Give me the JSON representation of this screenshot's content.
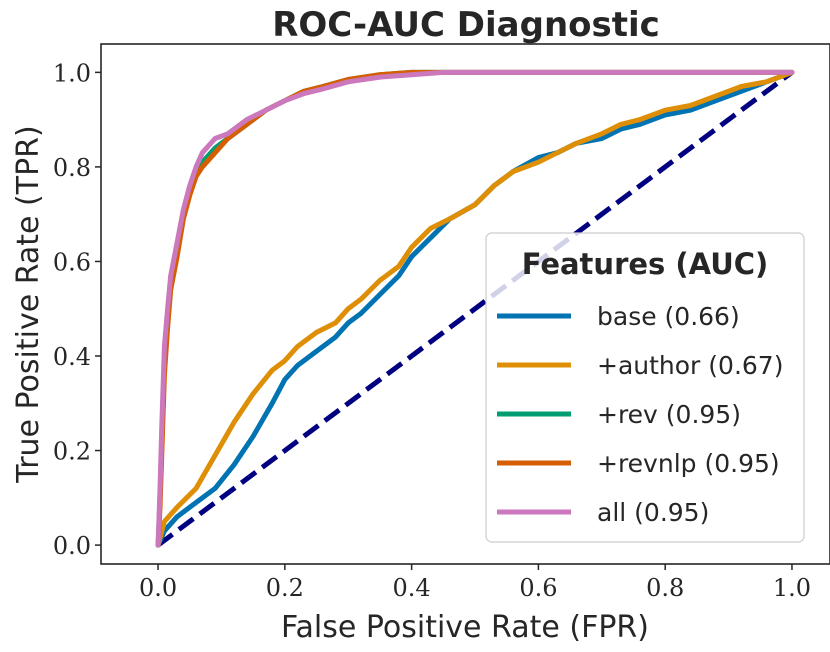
{
  "chart_data": {
    "type": "line",
    "title": "ROC-AUC Diagnostic",
    "xlabel": "False Positive Rate (FPR)",
    "ylabel": "True Positive Rate (TPR)",
    "xlim": [
      -0.09,
      1.06
    ],
    "ylim": [
      -0.04,
      1.06
    ],
    "xticks": [
      "0.0",
      "0.2",
      "0.4",
      "0.6",
      "0.8",
      "1.0"
    ],
    "yticks": [
      "0.0",
      "0.2",
      "0.4",
      "0.6",
      "0.8",
      "1.0"
    ],
    "xtick_values": [
      0,
      0.2,
      0.4,
      0.6,
      0.8,
      1.0
    ],
    "ytick_values": [
      0,
      0.2,
      0.4,
      0.6,
      0.8,
      1.0
    ],
    "grid": false,
    "legend": {
      "title": "Features (AUC)",
      "position": "lower-right"
    },
    "diagonal": {
      "x": [
        0,
        1
      ],
      "y": [
        0,
        1
      ],
      "color": "#000080",
      "style": "dashed"
    },
    "series": [
      {
        "name": "base (0.66)",
        "color": "#0173b2",
        "x": [
          0,
          0.01,
          0.03,
          0.06,
          0.09,
          0.12,
          0.15,
          0.18,
          0.2,
          0.22,
          0.25,
          0.28,
          0.3,
          0.32,
          0.35,
          0.38,
          0.4,
          0.43,
          0.46,
          0.5,
          0.53,
          0.56,
          0.6,
          0.63,
          0.66,
          0.7,
          0.73,
          0.76,
          0.8,
          0.84,
          0.88,
          0.92,
          0.96,
          1.0
        ],
        "y": [
          0,
          0.03,
          0.06,
          0.09,
          0.12,
          0.17,
          0.23,
          0.3,
          0.35,
          0.38,
          0.41,
          0.44,
          0.47,
          0.49,
          0.53,
          0.57,
          0.61,
          0.65,
          0.69,
          0.72,
          0.76,
          0.79,
          0.82,
          0.83,
          0.85,
          0.86,
          0.88,
          0.89,
          0.91,
          0.92,
          0.94,
          0.96,
          0.98,
          1.0
        ]
      },
      {
        "name": "+author (0.67)",
        "color": "#de8f05",
        "x": [
          0,
          0.01,
          0.03,
          0.06,
          0.09,
          0.12,
          0.15,
          0.18,
          0.2,
          0.22,
          0.25,
          0.28,
          0.3,
          0.32,
          0.35,
          0.38,
          0.4,
          0.43,
          0.46,
          0.5,
          0.53,
          0.56,
          0.6,
          0.63,
          0.66,
          0.7,
          0.73,
          0.76,
          0.8,
          0.84,
          0.88,
          0.92,
          0.96,
          1.0
        ],
        "y": [
          0,
          0.05,
          0.08,
          0.12,
          0.19,
          0.26,
          0.32,
          0.37,
          0.39,
          0.42,
          0.45,
          0.47,
          0.5,
          0.52,
          0.56,
          0.59,
          0.63,
          0.67,
          0.69,
          0.72,
          0.76,
          0.79,
          0.81,
          0.83,
          0.85,
          0.87,
          0.89,
          0.9,
          0.92,
          0.93,
          0.95,
          0.97,
          0.98,
          1.0
        ]
      },
      {
        "name": "+rev (0.95)",
        "color": "#029e73",
        "x": [
          0,
          0.003,
          0.006,
          0.01,
          0.015,
          0.02,
          0.03,
          0.04,
          0.05,
          0.06,
          0.07,
          0.09,
          0.11,
          0.14,
          0.17,
          0.2,
          0.23,
          0.26,
          0.3,
          0.35,
          0.4,
          0.45,
          0.5,
          0.6,
          0.8,
          1.0
        ],
        "y": [
          0,
          0.1,
          0.22,
          0.38,
          0.47,
          0.55,
          0.62,
          0.7,
          0.75,
          0.79,
          0.81,
          0.84,
          0.86,
          0.89,
          0.92,
          0.94,
          0.96,
          0.97,
          0.985,
          0.995,
          1.0,
          1.0,
          1.0,
          1.0,
          1.0,
          1.0
        ]
      },
      {
        "name": "+revnlp (0.95)",
        "color": "#d55e00",
        "x": [
          0,
          0.003,
          0.006,
          0.01,
          0.015,
          0.02,
          0.03,
          0.04,
          0.05,
          0.06,
          0.07,
          0.09,
          0.11,
          0.14,
          0.17,
          0.2,
          0.23,
          0.26,
          0.3,
          0.35,
          0.4,
          0.45,
          0.5,
          0.6,
          0.8,
          1.0
        ],
        "y": [
          0,
          0.08,
          0.2,
          0.36,
          0.46,
          0.54,
          0.61,
          0.69,
          0.74,
          0.78,
          0.8,
          0.83,
          0.86,
          0.89,
          0.92,
          0.94,
          0.96,
          0.97,
          0.985,
          0.995,
          1.0,
          1.0,
          1.0,
          1.0,
          1.0,
          1.0
        ]
      },
      {
        "name": "all (0.95)",
        "color": "#cc78bc",
        "x": [
          0,
          0.003,
          0.006,
          0.01,
          0.015,
          0.02,
          0.03,
          0.04,
          0.05,
          0.06,
          0.07,
          0.09,
          0.11,
          0.14,
          0.17,
          0.2,
          0.23,
          0.26,
          0.3,
          0.35,
          0.4,
          0.45,
          0.5,
          0.6,
          0.8,
          1.0
        ],
        "y": [
          0,
          0.12,
          0.26,
          0.42,
          0.5,
          0.57,
          0.64,
          0.71,
          0.76,
          0.8,
          0.83,
          0.86,
          0.87,
          0.9,
          0.92,
          0.94,
          0.955,
          0.965,
          0.98,
          0.99,
          0.995,
          1.0,
          1.0,
          1.0,
          1.0,
          1.0
        ]
      }
    ]
  }
}
